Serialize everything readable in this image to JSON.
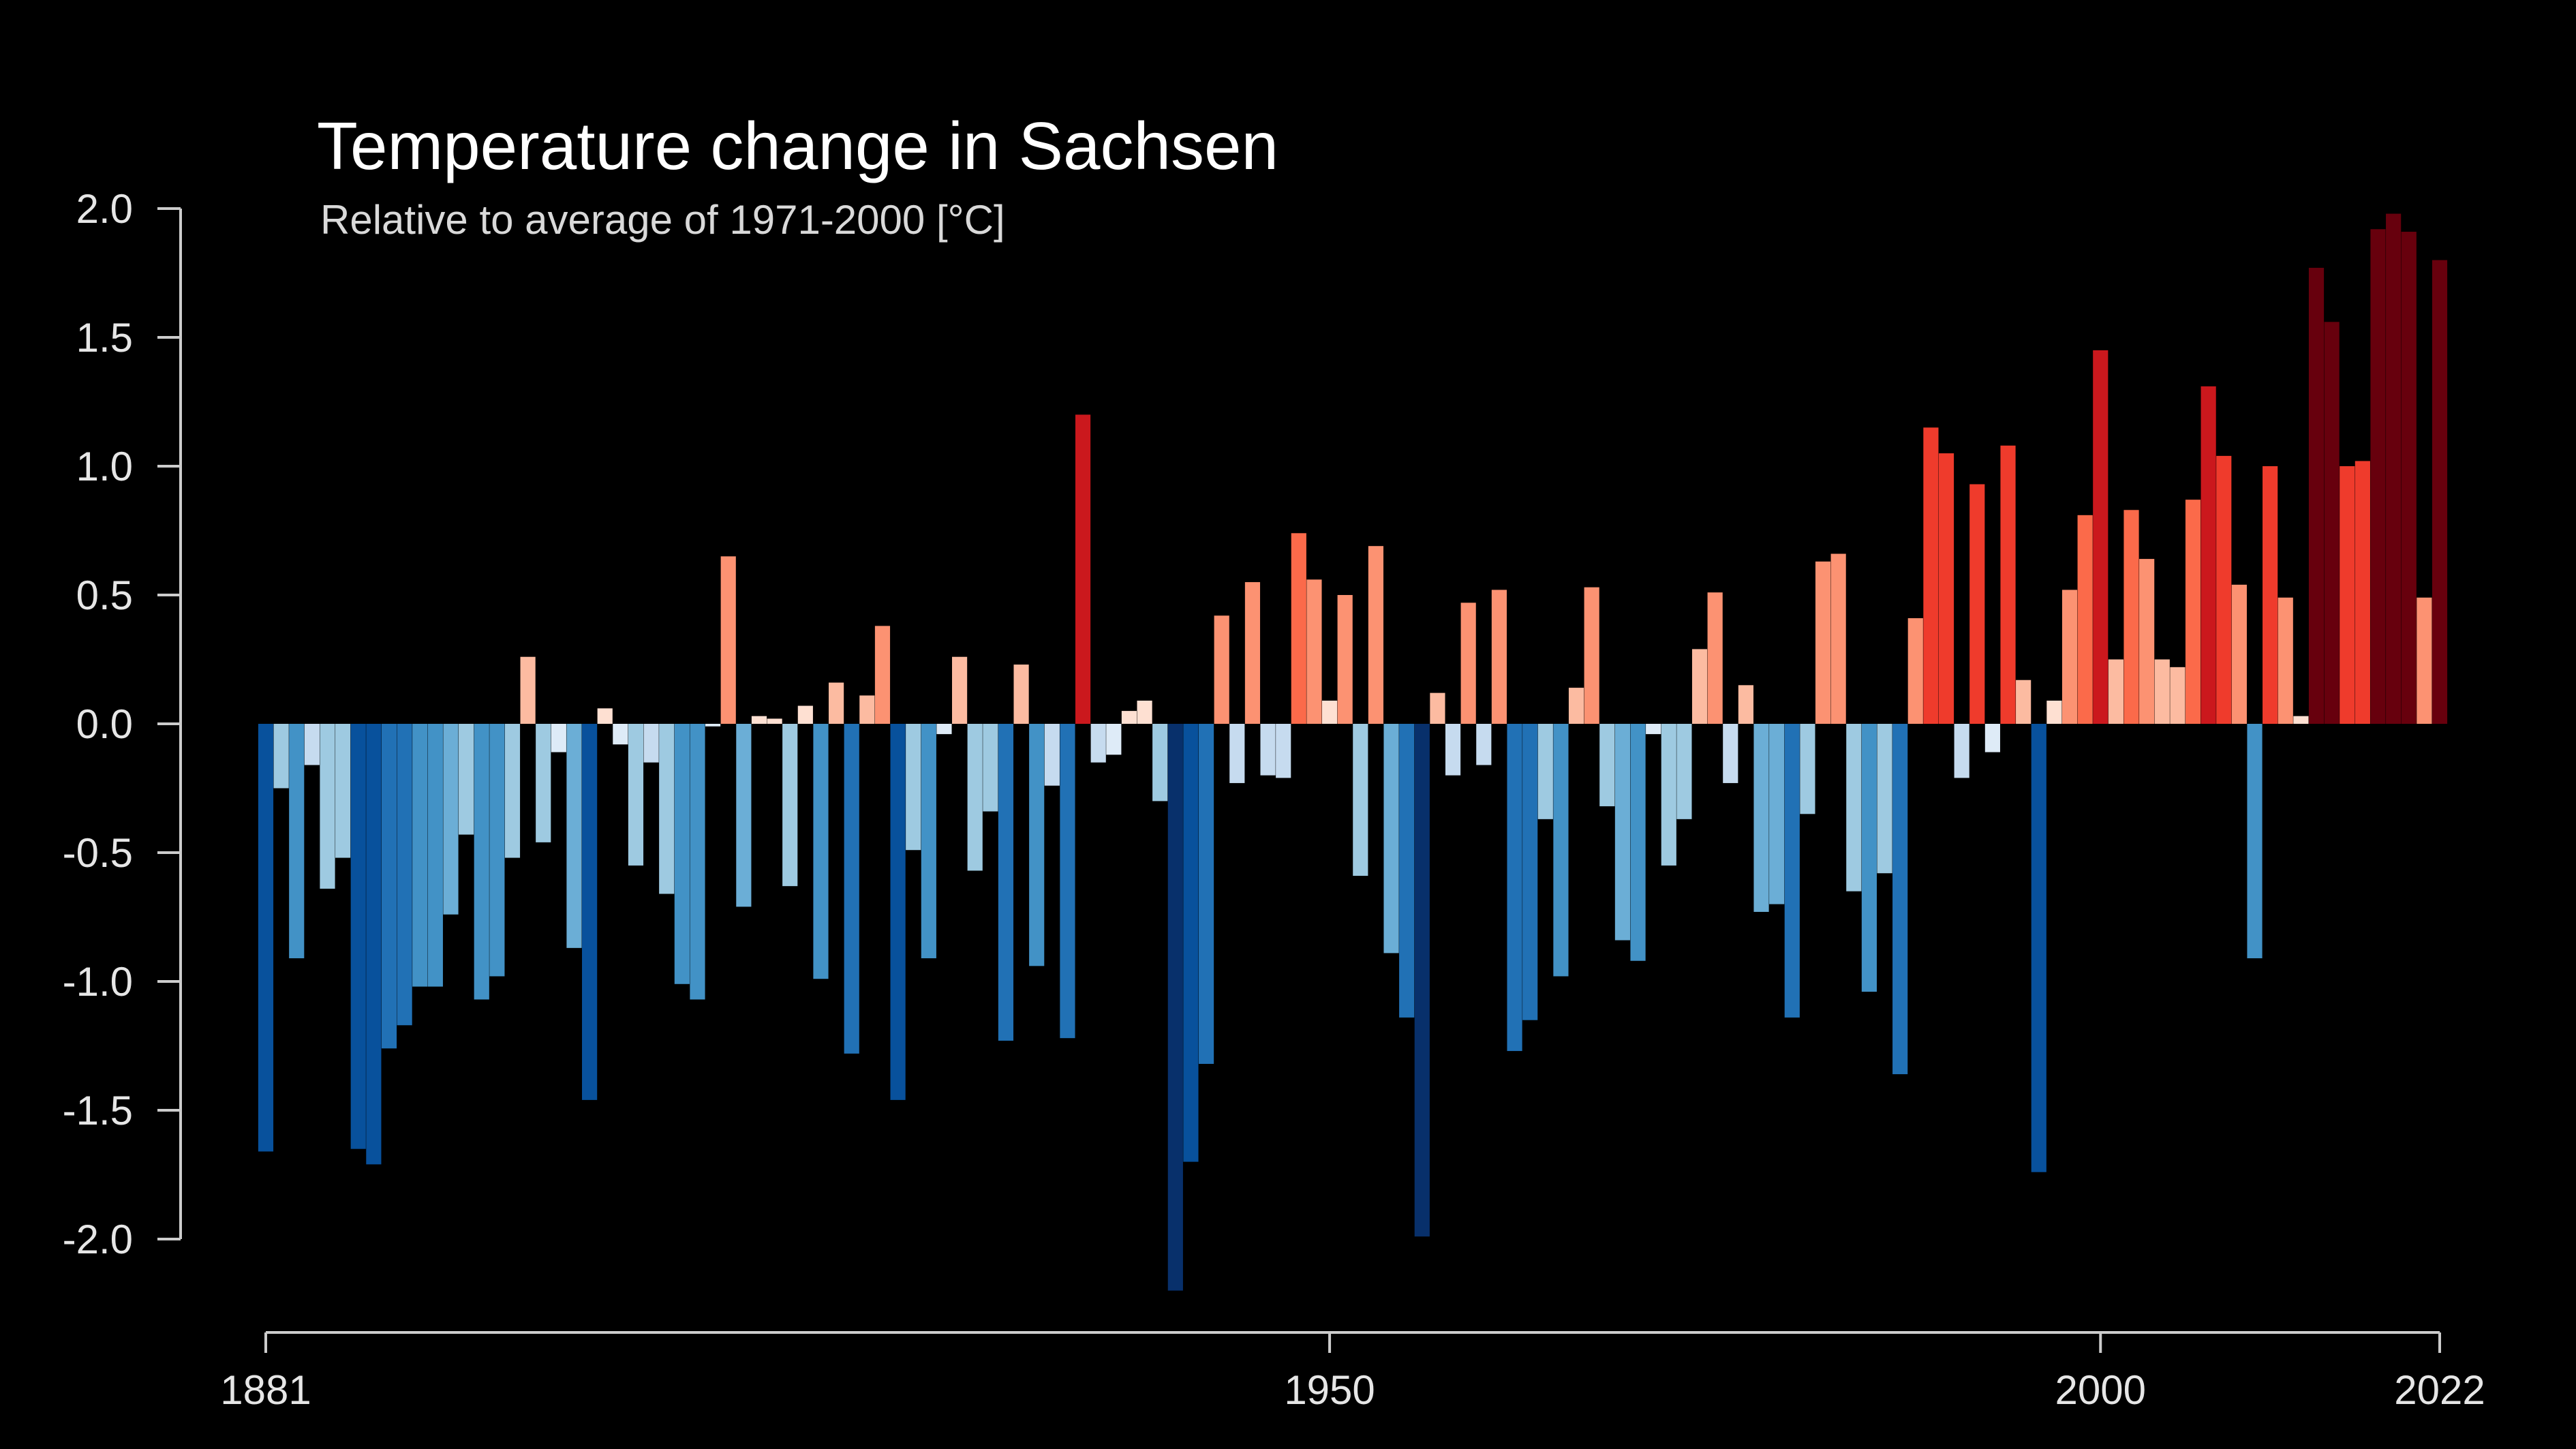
{
  "chart_data": {
    "type": "bar",
    "title": "Temperature change in Sachsen",
    "subtitle": "Relative to average of 1971-2000  [°C]",
    "xlabel": "",
    "ylabel": "",
    "ylim": [
      -2.0,
      2.0
    ],
    "yticks": [
      "2.0",
      "1.5",
      "1.0",
      "0.5",
      "0.0",
      "-0.5",
      "-1.0",
      "-1.5",
      "-2.0"
    ],
    "xticks": [
      "1881",
      "1950",
      "2000",
      "2022"
    ],
    "grid": false,
    "legend": "none",
    "colors": {
      "background": "#000000",
      "axis": "#cccccc",
      "text": "#ffffff",
      "warm_scale": [
        "#fee0d2",
        "#fcbba1",
        "#fc9272",
        "#fb6a4a",
        "#ef3b2c",
        "#cb181d",
        "#67000d"
      ],
      "cool_scale": [
        "#deebf7",
        "#c6dbef",
        "#9ecae1",
        "#6baed6",
        "#4292c6",
        "#2171b5",
        "#08519c",
        "#08306b"
      ]
    },
    "x_start": 1881,
    "x_end": 2022,
    "values": [
      -1.66,
      -0.25,
      -0.91,
      -0.16,
      -0.64,
      -0.52,
      -1.65,
      -1.71,
      -1.26,
      -1.17,
      -1.02,
      -1.02,
      -0.74,
      -0.43,
      -1.07,
      -0.98,
      -0.52,
      0.26,
      -0.46,
      -0.11,
      -0.87,
      -1.46,
      0.06,
      -0.08,
      -0.55,
      -0.15,
      -0.66,
      -1.01,
      -1.07,
      -0.01,
      0.65,
      -0.71,
      0.03,
      0.02,
      -0.63,
      0.07,
      -0.99,
      0.16,
      -1.28,
      0.11,
      0.38,
      -1.46,
      -0.49,
      -0.91,
      -0.04,
      0.26,
      -0.57,
      -0.34,
      -1.23,
      0.23,
      -0.94,
      -0.24,
      -1.22,
      1.2,
      -0.15,
      -0.12,
      0.05,
      0.09,
      -0.3,
      -2.2,
      -1.7,
      -1.32,
      0.42,
      -0.23,
      0.55,
      -0.2,
      -0.21,
      0.74,
      0.56,
      0.09,
      0.5,
      -0.59,
      0.69,
      -0.89,
      -1.14,
      -1.99,
      0.12,
      -0.2,
      0.47,
      -0.16,
      0.52,
      -1.27,
      -1.15,
      -0.37,
      -0.98,
      0.14,
      0.53,
      -0.32,
      -0.84,
      -0.92,
      -0.04,
      -0.55,
      -0.37,
      0.29,
      0.51,
      -0.23,
      0.15,
      -0.73,
      -0.7,
      -1.14,
      -0.35,
      0.63,
      0.66,
      -0.65,
      -1.04,
      -0.58,
      -1.36,
      0.41,
      1.15,
      1.05,
      -0.21,
      0.93,
      -0.11,
      1.08,
      0.17,
      -1.74,
      0.09,
      0.52,
      0.81,
      1.45,
      0.25,
      0.83,
      0.64,
      0.25,
      0.22,
      0.87,
      1.31,
      1.04,
      0.54,
      -0.91,
      1.0,
      0.49,
      0.03,
      1.77,
      1.56,
      1.0,
      1.02,
      1.92,
      1.98,
      1.91,
      0.49,
      1.8
    ]
  }
}
